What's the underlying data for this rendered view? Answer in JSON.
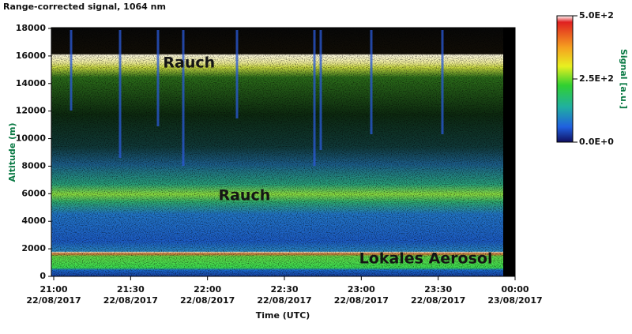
{
  "chart_data": {
    "type": "heatmap",
    "title": "Range-corrected signal, 1064 nm",
    "y_label": "Altitude (m)",
    "x_label": "Time (UTC)",
    "ylim": [
      0,
      18000
    ],
    "yticks": [
      0,
      2000,
      4000,
      6000,
      8000,
      10000,
      12000,
      14000,
      16000,
      18000
    ],
    "xlim": [
      21,
      24
    ],
    "xticks": [
      {
        "value": 21,
        "label": "21:00",
        "date": "22/08/2017"
      },
      {
        "value": 21.5,
        "label": "21:30",
        "date": "22/08/2017"
      },
      {
        "value": 22,
        "label": "22:00",
        "date": "22/08/2017"
      },
      {
        "value": 22.5,
        "label": "22:30",
        "date": "22/08/2017"
      },
      {
        "value": 23,
        "label": "23:00",
        "date": "22/08/2017"
      },
      {
        "value": 23.5,
        "label": "23:30",
        "date": "22/08/2017"
      },
      {
        "value": 24,
        "label": "00:00",
        "date": "23/08/2017"
      }
    ],
    "colorbar": {
      "label": "Signal [a.u.]",
      "lim": [
        0,
        500
      ],
      "ticks": [
        {
          "value": 500,
          "label": "5.0E+2"
        },
        {
          "value": 250,
          "label": "2.5E+2"
        },
        {
          "value": 0,
          "label": "0.0E+0"
        }
      ]
    },
    "annotations": [
      {
        "text": "Rauch",
        "x": 21.88,
        "y": 15480
      },
      {
        "text": "Rauch",
        "x": 22.24,
        "y": 5850
      },
      {
        "text": "Lokales Aerosol",
        "x": 23.42,
        "y": 1260
      }
    ]
  }
}
